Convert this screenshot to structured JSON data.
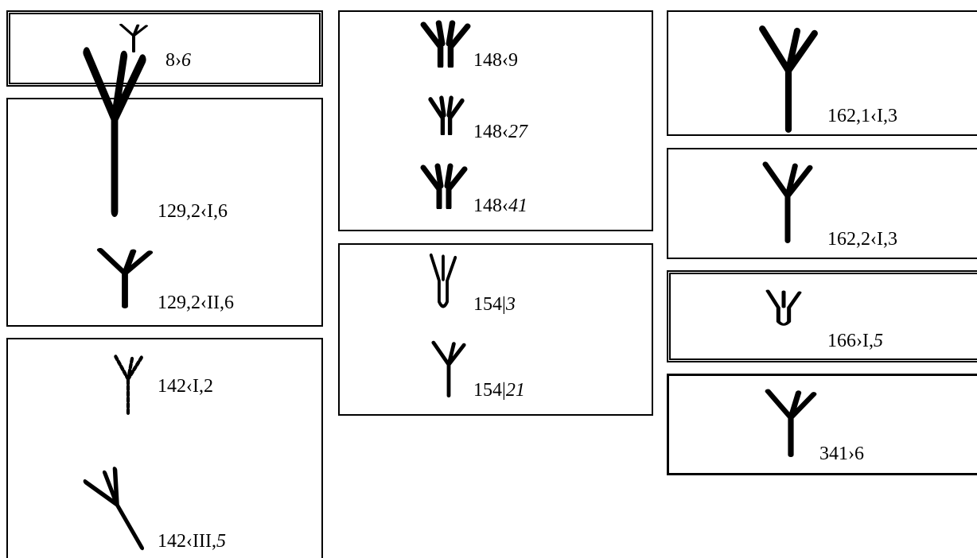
{
  "boxes": [
    {
      "entries": [
        {
          "label": "8›",
          "italic": "6"
        }
      ]
    },
    {
      "entries": [
        {
          "label": "129,2‹I,6"
        },
        {
          "label": "129,2‹II,6"
        }
      ]
    },
    {
      "entries": [
        {
          "label": "142‹I,2"
        },
        {
          "label": "142‹III,",
          "italic": "5"
        }
      ]
    },
    {
      "entries": [
        {
          "label": "148‹9"
        },
        {
          "label": "148‹",
          "italic": "27"
        },
        {
          "label": "148‹",
          "italic": "41"
        }
      ]
    },
    {
      "entries": [
        {
          "label": "154|",
          "italic": "3"
        },
        {
          "label": "154|",
          "italic": "21"
        }
      ]
    },
    {
      "entries": [
        {
          "label": "162,1‹I,3"
        }
      ]
    },
    {
      "entries": [
        {
          "label": "162,2‹I,3"
        }
      ]
    },
    {
      "entries": [
        {
          "label": "166›I,",
          "italic": "5"
        }
      ]
    },
    {
      "entries": [
        {
          "label": "341›6"
        }
      ]
    }
  ]
}
